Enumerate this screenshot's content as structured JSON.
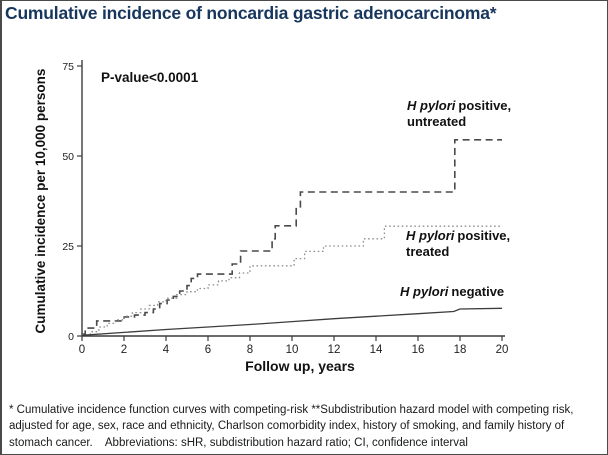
{
  "slide": {
    "title": "Cumulative incidence of noncardia gastric adenocarcinoma*",
    "title_color": "#17365d",
    "footnote": "* Cumulative incidence function curves with competing-risk **Subdistribution hazard model with competing risk, adjusted for age, sex, race and ethnicity, Charlson comorbidity index, history of smoking, and family history of stomach cancer.    Abbreviations: sHR, subdistribution hazard ratio; CI, confidence interval"
  },
  "chart_data": {
    "type": "line",
    "title": "Cumulative incidence of noncardia gastric adenocarcinoma*",
    "xlabel": "Follow up, years",
    "ylabel": "Cumulative incidence per 10,000 persons",
    "annotation": "P-value<0.0001",
    "xlim": [
      0,
      20
    ],
    "ylim": [
      0,
      75
    ],
    "xticks": [
      0,
      2,
      4,
      6,
      8,
      10,
      12,
      14,
      16,
      18,
      20
    ],
    "yticks": [
      0,
      25,
      50,
      75
    ],
    "grid": false,
    "legend_position": "inline-labels-right",
    "axis_color": "#3c3c3c",
    "series": [
      {
        "id": "untreated",
        "name": "H pylori positive, untreated",
        "style": "dashed",
        "step": true,
        "color": "#4a4a4a",
        "x": [
          0,
          0.15,
          0.7,
          2.0,
          2.5,
          3.0,
          3.4,
          3.7,
          4.05,
          4.35,
          4.65,
          5.0,
          5.2,
          5.5,
          7.15,
          7.55,
          9.05,
          9.2,
          10.2,
          10.4,
          17.75,
          20
        ],
        "y": [
          0.5,
          2.2,
          4.2,
          5.3,
          5.8,
          6.5,
          7.5,
          9.0,
          10.0,
          11.0,
          12.5,
          14.0,
          16.0,
          17.2,
          20.0,
          23.6,
          27.0,
          30.6,
          35.6,
          40.0,
          54.5,
          54.5
        ]
      },
      {
        "id": "treated",
        "name": "H pylori positive, treated",
        "style": "dotted",
        "step": true,
        "color": "#8f8f8f",
        "x": [
          0,
          0.4,
          0.8,
          1.2,
          1.6,
          2.0,
          2.4,
          2.8,
          3.2,
          3.6,
          4.0,
          4.5,
          5.0,
          5.5,
          6.0,
          6.5,
          7.0,
          7.5,
          8.0,
          10.1,
          10.6,
          11.5,
          13.4,
          14.4,
          20
        ],
        "y": [
          0.3,
          1.2,
          2.5,
          3.5,
          4.5,
          5.5,
          6.5,
          7.5,
          8.5,
          9.5,
          10.5,
          11.5,
          12.3,
          13.2,
          14.2,
          15.3,
          16.2,
          17.5,
          19.5,
          21.5,
          23.5,
          25.0,
          27.0,
          30.5,
          30.5
        ]
      },
      {
        "id": "negative",
        "name": "H pylori negative",
        "style": "solid",
        "step": false,
        "color": "#3d3d3d",
        "x": [
          0,
          2,
          4,
          6,
          8,
          10,
          12,
          14,
          16,
          17.7,
          18,
          20
        ],
        "y": [
          0.2,
          1.0,
          1.8,
          2.5,
          3.2,
          4.0,
          4.8,
          5.5,
          6.2,
          6.8,
          7.5,
          7.7
        ]
      }
    ],
    "labels": [
      {
        "italic": "H pylori",
        "rest": "positive,",
        "line2": "untreated"
      },
      {
        "italic": "H pylori",
        "rest": "positive,",
        "line2": "treated"
      },
      {
        "italic": "H pylori",
        "rest": "negative",
        "line2": ""
      }
    ]
  }
}
